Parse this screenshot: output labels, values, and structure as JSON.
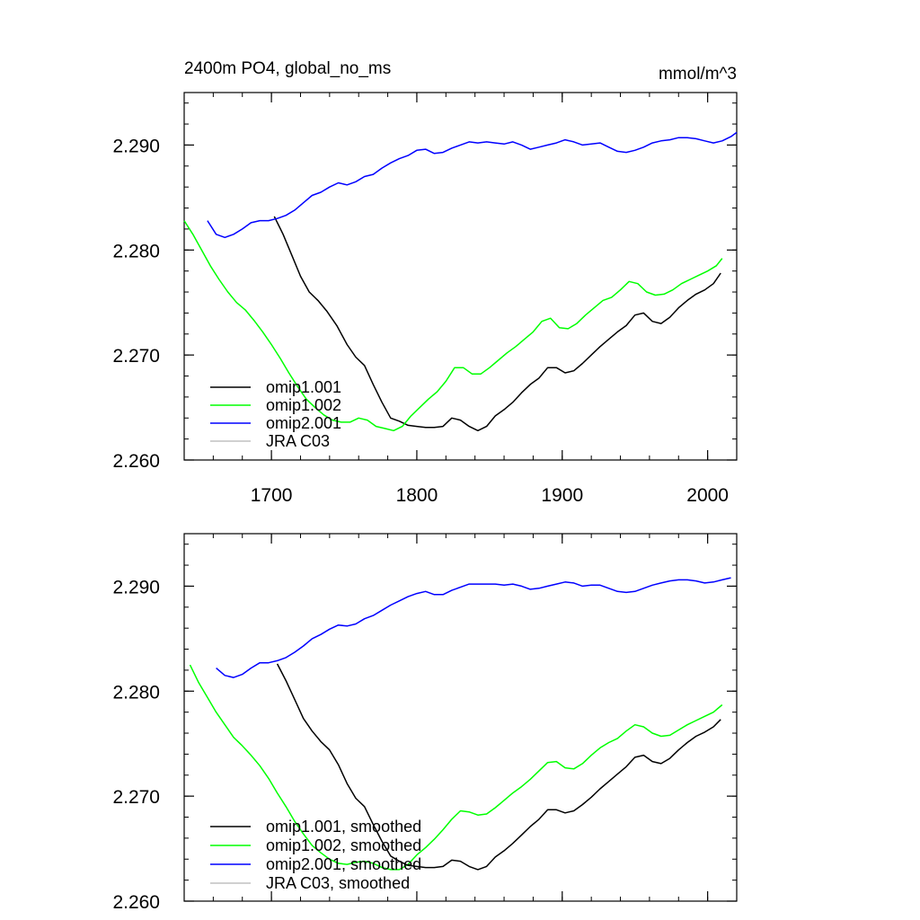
{
  "chart_data": [
    {
      "type": "line",
      "title": "2400m PO4, global_no_ms",
      "units": "mmol/m^3",
      "xlabel": "",
      "ylabel": "",
      "xlim": [
        1640,
        2020
      ],
      "ylim": [
        2.26,
        2.295
      ],
      "xticks": [
        1700,
        1800,
        1900,
        2000
      ],
      "xtick_labels": [
        "1700",
        "1800",
        "1900",
        "2000"
      ],
      "yticks": [
        2.26,
        2.27,
        2.28,
        2.29
      ],
      "ytick_labels": [
        "2.260",
        "2.270",
        "2.280",
        "2.290"
      ],
      "show_xtick_labels": true,
      "grid": false,
      "legend_position": "bottom-left",
      "series": [
        {
          "name": "omip1.001",
          "color": "#000000",
          "x": [
            1702,
            1708,
            1714,
            1720,
            1726,
            1732,
            1738,
            1745,
            1752,
            1758,
            1764,
            1770,
            1776,
            1782,
            1788,
            1794,
            1800,
            1806,
            1812,
            1818,
            1824,
            1830,
            1836,
            1842,
            1848,
            1854,
            1860,
            1866,
            1872,
            1878,
            1884,
            1890,
            1896,
            1902,
            1908,
            1914,
            1920,
            1926,
            1932,
            1938,
            1944,
            1950,
            1956,
            1962,
            1968,
            1974,
            1980,
            1986,
            1992,
            1998,
            2004,
            2009
          ],
          "values": [
            2.2832,
            2.2815,
            2.2795,
            2.2775,
            2.276,
            2.2752,
            2.2742,
            2.2728,
            2.271,
            2.2698,
            2.269,
            2.2672,
            2.2655,
            2.264,
            2.2637,
            2.2633,
            2.2632,
            2.2631,
            2.2631,
            2.2632,
            2.264,
            2.2638,
            2.2632,
            2.2628,
            2.2632,
            2.2642,
            2.2648,
            2.2655,
            2.2664,
            2.2672,
            2.2678,
            2.2688,
            2.2688,
            2.2683,
            2.2685,
            2.2692,
            2.27,
            2.2708,
            2.2715,
            2.2722,
            2.2728,
            2.2738,
            2.274,
            2.2732,
            2.273,
            2.2736,
            2.2745,
            2.2752,
            2.2758,
            2.2762,
            2.2768,
            2.2778
          ]
        },
        {
          "name": "omip1.002",
          "color": "#00ff00",
          "x": [
            1640,
            1646,
            1652,
            1658,
            1664,
            1670,
            1676,
            1682,
            1688,
            1694,
            1700,
            1706,
            1712,
            1718,
            1724,
            1730,
            1736,
            1742,
            1748,
            1754,
            1760,
            1766,
            1772,
            1778,
            1784,
            1790,
            1796,
            1802,
            1808,
            1814,
            1820,
            1826,
            1832,
            1838,
            1844,
            1850,
            1856,
            1862,
            1868,
            1874,
            1880,
            1886,
            1892,
            1898,
            1904,
            1910,
            1916,
            1922,
            1928,
            1934,
            1940,
            1946,
            1952,
            1958,
            1964,
            1970,
            1976,
            1982,
            1988,
            1994,
            2000,
            2006,
            2010
          ],
          "values": [
            2.2828,
            2.2815,
            2.28,
            2.2785,
            2.2772,
            2.276,
            2.275,
            2.2743,
            2.2733,
            2.2722,
            2.271,
            2.2697,
            2.2683,
            2.267,
            2.2658,
            2.265,
            2.2643,
            2.2638,
            2.2636,
            2.2636,
            2.264,
            2.2638,
            2.2632,
            2.263,
            2.2628,
            2.2632,
            2.2642,
            2.265,
            2.2658,
            2.2665,
            2.2675,
            2.2688,
            2.2688,
            2.2682,
            2.2682,
            2.2688,
            2.2695,
            2.2702,
            2.2708,
            2.2715,
            2.2722,
            2.2732,
            2.2735,
            2.2726,
            2.2725,
            2.273,
            2.2738,
            2.2745,
            2.2752,
            2.2755,
            2.2762,
            2.277,
            2.2768,
            2.276,
            2.2757,
            2.2758,
            2.2762,
            2.2768,
            2.2772,
            2.2776,
            2.278,
            2.2785,
            2.2792
          ]
        },
        {
          "name": "omip2.001",
          "color": "#0000ff",
          "x": [
            1656,
            1662,
            1668,
            1674,
            1680,
            1686,
            1692,
            1698,
            1704,
            1710,
            1716,
            1722,
            1728,
            1734,
            1740,
            1746,
            1752,
            1758,
            1764,
            1770,
            1776,
            1782,
            1788,
            1794,
            1800,
            1806,
            1812,
            1818,
            1824,
            1830,
            1836,
            1842,
            1848,
            1854,
            1860,
            1866,
            1872,
            1878,
            1884,
            1890,
            1896,
            1902,
            1908,
            1914,
            1920,
            1926,
            1932,
            1938,
            1944,
            1950,
            1956,
            1962,
            1968,
            1974,
            1980,
            1986,
            1992,
            1998,
            2004,
            2010,
            2016,
            2020
          ],
          "values": [
            2.2828,
            2.2815,
            2.2812,
            2.2815,
            2.282,
            2.2826,
            2.2828,
            2.2828,
            2.283,
            2.2833,
            2.2838,
            2.2845,
            2.2852,
            2.2855,
            2.286,
            2.2864,
            2.2862,
            2.2865,
            2.287,
            2.2872,
            2.2878,
            2.2883,
            2.2887,
            2.289,
            2.2895,
            2.2896,
            2.2892,
            2.2893,
            2.2897,
            2.29,
            2.2903,
            2.2902,
            2.2903,
            2.2902,
            2.2901,
            2.2903,
            2.29,
            2.2896,
            2.2898,
            2.29,
            2.2902,
            2.2905,
            2.2903,
            2.29,
            2.2901,
            2.2902,
            2.2898,
            2.2894,
            2.2893,
            2.2895,
            2.2898,
            2.2902,
            2.2904,
            2.2905,
            2.2907,
            2.2907,
            2.2906,
            2.2904,
            2.2902,
            2.2904,
            2.2908,
            2.2912
          ]
        },
        {
          "name": "JRA C03",
          "color": "#c0c0c0",
          "x": [],
          "values": []
        }
      ]
    },
    {
      "type": "line",
      "title": "",
      "units": "",
      "xlabel": "",
      "ylabel": "",
      "xlim": [
        1640,
        2020
      ],
      "ylim": [
        2.26,
        2.295
      ],
      "xticks": [
        1700,
        1800,
        1900,
        2000
      ],
      "xtick_labels": [],
      "yticks": [
        2.26,
        2.27,
        2.28,
        2.29
      ],
      "ytick_labels": [
        "2.260",
        "2.270",
        "2.280",
        "2.290"
      ],
      "show_xtick_labels": false,
      "grid": false,
      "legend_position": "bottom-left",
      "series": [
        {
          "name": "omip1.001, smoothed",
          "color": "#000000",
          "x": [
            1704,
            1710,
            1716,
            1722,
            1728,
            1734,
            1740,
            1746,
            1752,
            1758,
            1764,
            1770,
            1776,
            1782,
            1788,
            1794,
            1800,
            1806,
            1812,
            1818,
            1824,
            1830,
            1836,
            1842,
            1848,
            1854,
            1860,
            1866,
            1872,
            1878,
            1884,
            1890,
            1896,
            1902,
            1908,
            1914,
            1920,
            1926,
            1932,
            1938,
            1944,
            1950,
            1956,
            1962,
            1968,
            1974,
            1980,
            1986,
            1992,
            1998,
            2004,
            2009
          ],
          "values": [
            2.2826,
            2.281,
            2.2792,
            2.2774,
            2.2762,
            2.2752,
            2.2744,
            2.273,
            2.2712,
            2.2698,
            2.269,
            2.2673,
            2.2657,
            2.2643,
            2.2638,
            2.2634,
            2.2633,
            2.2632,
            2.2632,
            2.2633,
            2.2639,
            2.2638,
            2.2633,
            2.263,
            2.2633,
            2.2642,
            2.2648,
            2.2655,
            2.2663,
            2.2671,
            2.2678,
            2.2687,
            2.2687,
            2.2684,
            2.2686,
            2.2692,
            2.2699,
            2.2707,
            2.2714,
            2.2721,
            2.2728,
            2.2737,
            2.2739,
            2.2733,
            2.2731,
            2.2736,
            2.2744,
            2.2751,
            2.2757,
            2.2761,
            2.2766,
            2.2773
          ]
        },
        {
          "name": "omip1.002, smoothed",
          "color": "#00ff00",
          "x": [
            1644,
            1650,
            1656,
            1662,
            1668,
            1674,
            1680,
            1686,
            1692,
            1698,
            1704,
            1710,
            1716,
            1722,
            1728,
            1734,
            1740,
            1746,
            1752,
            1758,
            1764,
            1770,
            1776,
            1782,
            1788,
            1794,
            1800,
            1806,
            1812,
            1818,
            1824,
            1830,
            1836,
            1842,
            1848,
            1854,
            1860,
            1866,
            1872,
            1878,
            1884,
            1890,
            1896,
            1902,
            1908,
            1914,
            1920,
            1926,
            1932,
            1938,
            1944,
            1950,
            1956,
            1962,
            1968,
            1974,
            1980,
            1986,
            1992,
            1998,
            2004,
            2010
          ],
          "values": [
            2.2825,
            2.2808,
            2.2794,
            2.278,
            2.2768,
            2.2756,
            2.2748,
            2.2739,
            2.2729,
            2.2717,
            2.2703,
            2.269,
            2.2676,
            2.2664,
            2.2653,
            2.2646,
            2.264,
            2.2636,
            2.2635,
            2.2637,
            2.2638,
            2.2636,
            2.2632,
            2.263,
            2.263,
            2.2635,
            2.2644,
            2.2651,
            2.2659,
            2.2668,
            2.2678,
            2.2686,
            2.2685,
            2.2682,
            2.2683,
            2.2689,
            2.2696,
            2.2703,
            2.2709,
            2.2716,
            2.2724,
            2.2732,
            2.2733,
            2.2727,
            2.2726,
            2.2731,
            2.2739,
            2.2746,
            2.2751,
            2.2755,
            2.2762,
            2.2768,
            2.2766,
            2.276,
            2.2757,
            2.2758,
            2.2763,
            2.2768,
            2.2772,
            2.2776,
            2.278,
            2.2787
          ]
        },
        {
          "name": "omip2.001, smoothed",
          "color": "#0000ff",
          "x": [
            1662,
            1668,
            1674,
            1680,
            1686,
            1692,
            1698,
            1704,
            1710,
            1716,
            1722,
            1728,
            1734,
            1740,
            1746,
            1752,
            1758,
            1764,
            1770,
            1776,
            1782,
            1788,
            1794,
            1800,
            1806,
            1812,
            1818,
            1824,
            1830,
            1836,
            1842,
            1848,
            1854,
            1860,
            1866,
            1872,
            1878,
            1884,
            1890,
            1896,
            1902,
            1908,
            1914,
            1920,
            1926,
            1932,
            1938,
            1944,
            1950,
            1956,
            1962,
            1968,
            1974,
            1980,
            1986,
            1992,
            1998,
            2004,
            2010,
            2016
          ],
          "values": [
            2.2822,
            2.2815,
            2.2813,
            2.2816,
            2.2822,
            2.2827,
            2.2827,
            2.2829,
            2.2832,
            2.2837,
            2.2843,
            2.285,
            2.2854,
            2.2859,
            2.2863,
            2.2862,
            2.2864,
            2.2869,
            2.2872,
            2.2877,
            2.2882,
            2.2886,
            2.289,
            2.2893,
            2.2895,
            2.2892,
            2.2892,
            2.2896,
            2.2899,
            2.2902,
            2.2902,
            2.2902,
            2.2902,
            2.2901,
            2.2902,
            2.29,
            2.2897,
            2.2898,
            2.29,
            2.2902,
            2.2904,
            2.2903,
            2.29,
            2.2901,
            2.2901,
            2.2898,
            2.2895,
            2.2894,
            2.2895,
            2.2898,
            2.2901,
            2.2903,
            2.2905,
            2.2906,
            2.2906,
            2.2905,
            2.2903,
            2.2904,
            2.2906,
            2.2908
          ]
        },
        {
          "name": "JRA C03, smoothed",
          "color": "#c0c0c0",
          "x": [],
          "values": []
        }
      ]
    }
  ]
}
